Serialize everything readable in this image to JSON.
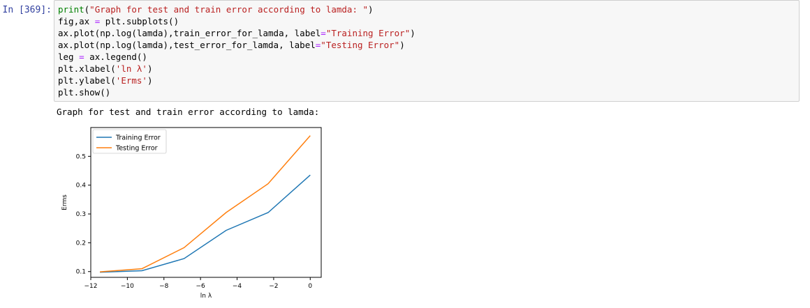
{
  "cell": {
    "prompt": "In [369]:",
    "code_lines": [
      [
        {
          "t": "print",
          "c": "kw"
        },
        {
          "t": "(",
          "c": ""
        },
        {
          "t": "\"Graph for test and train error according to lamda: \"",
          "c": "str"
        },
        {
          "t": ")",
          "c": ""
        }
      ],
      [
        {
          "t": "fig,ax ",
          "c": ""
        },
        {
          "t": "=",
          "c": "op"
        },
        {
          "t": " plt.subplots()",
          "c": ""
        }
      ],
      [
        {
          "t": "ax.plot(np.log(lamda),train_error_for_lamda, label",
          "c": ""
        },
        {
          "t": "=",
          "c": "op"
        },
        {
          "t": "\"Training Error\"",
          "c": "str"
        },
        {
          "t": ")",
          "c": ""
        }
      ],
      [
        {
          "t": "ax.plot(np.log(lamda),test_error_for_lamda, label",
          "c": ""
        },
        {
          "t": "=",
          "c": "op"
        },
        {
          "t": "\"Testing Error\"",
          "c": "str"
        },
        {
          "t": ")",
          "c": ""
        }
      ],
      [
        {
          "t": "leg ",
          "c": ""
        },
        {
          "t": "=",
          "c": "op"
        },
        {
          "t": " ax.legend()",
          "c": ""
        }
      ],
      [
        {
          "t": "plt.xlabel(",
          "c": ""
        },
        {
          "t": "'ln λ'",
          "c": "str"
        },
        {
          "t": ")",
          "c": ""
        }
      ],
      [
        {
          "t": "plt.ylabel(",
          "c": ""
        },
        {
          "t": "'Erms'",
          "c": "str"
        },
        {
          "t": ")",
          "c": ""
        }
      ],
      [
        {
          "t": "plt.show()",
          "c": ""
        }
      ]
    ]
  },
  "output": {
    "text": "Graph for test and train error according to lamda:"
  },
  "chart_data": {
    "type": "line",
    "title": "",
    "xlabel": "ln λ",
    "ylabel": "Erms",
    "xlim": [
      -12,
      0.6
    ],
    "ylim": [
      0.08,
      0.6
    ],
    "xticks": [
      -12,
      -10,
      -8,
      -6,
      -4,
      -2,
      0
    ],
    "yticks": [
      0.1,
      0.2,
      0.3,
      0.4,
      0.5
    ],
    "xtick_labels": [
      "−12",
      "−10",
      "−8",
      "−6",
      "−4",
      "−2",
      "0"
    ],
    "ytick_labels": [
      "0.1",
      "0.2",
      "0.3",
      "0.4",
      "0.5"
    ],
    "grid": false,
    "legend": "top-left",
    "x": [
      -11.5,
      -9.2,
      -6.9,
      -4.6,
      -2.3,
      0
    ],
    "series": [
      {
        "name": "Training Error",
        "color": "#1f77b4",
        "values": [
          0.098,
          0.103,
          0.145,
          0.243,
          0.305,
          0.435
        ]
      },
      {
        "name": "Testing Error",
        "color": "#ff7f0e",
        "values": [
          0.099,
          0.11,
          0.183,
          0.305,
          0.405,
          0.572
        ]
      }
    ]
  }
}
